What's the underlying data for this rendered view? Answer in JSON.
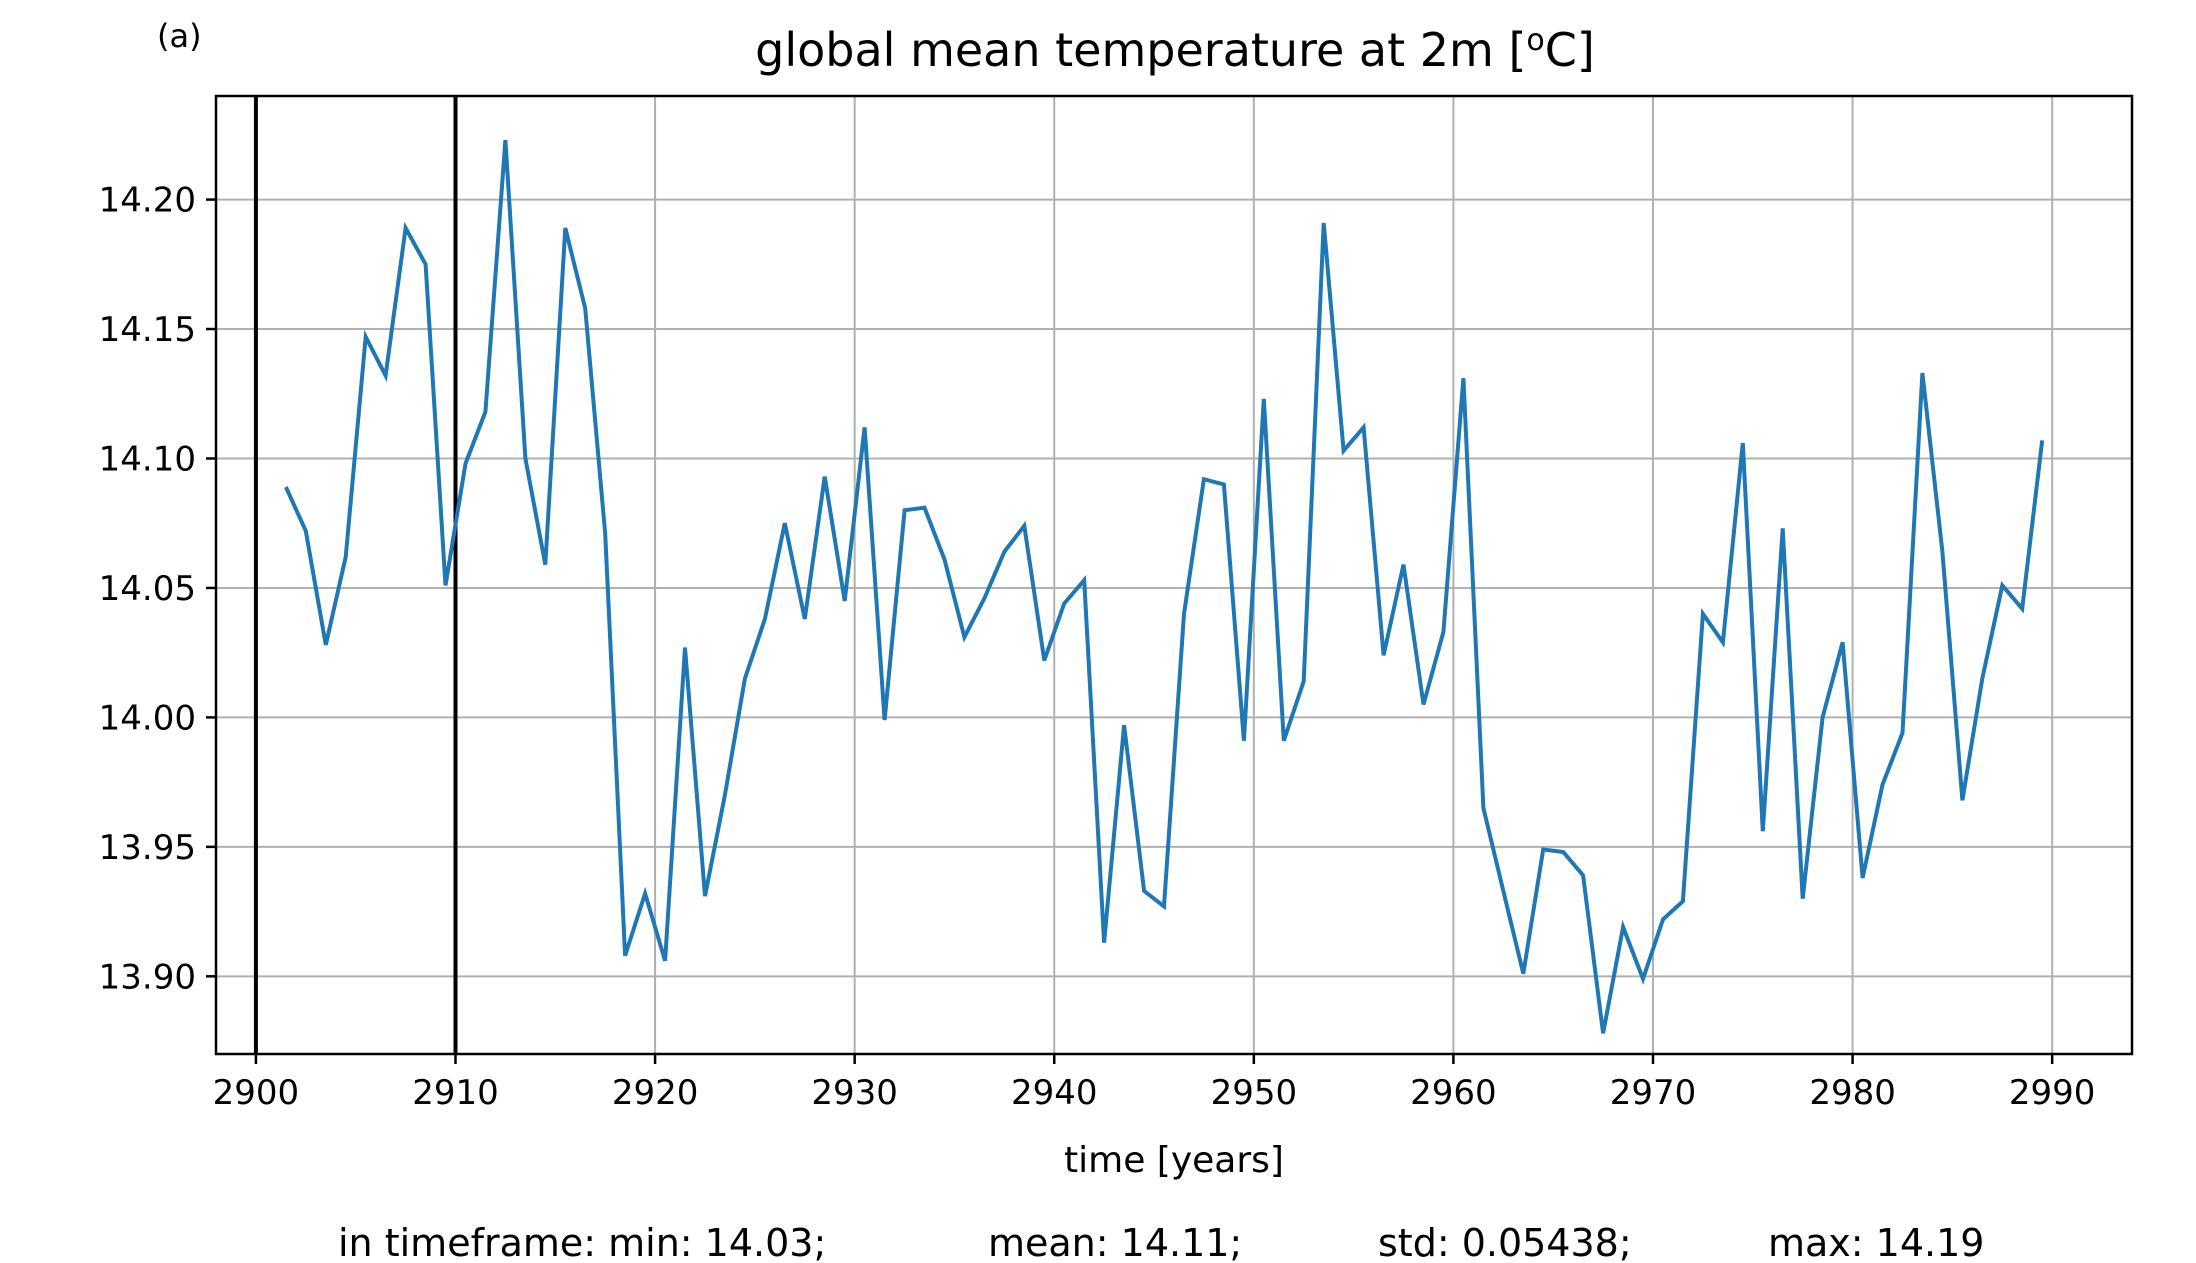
{
  "panel_label": "(a)",
  "stats": [
    {
      "label": "in timeframe: min: 14.03;"
    },
    {
      "label": "mean: 14.11;"
    },
    {
      "label": "std: 0.05438;"
    },
    {
      "label": "max: 14.19"
    }
  ],
  "colors": {
    "series": "#1f77b4",
    "grid": "#b0b0b0",
    "marker_lines": "#000000"
  },
  "chart_data": {
    "type": "line",
    "title_main": "global mean temperature at 2m [",
    "title_sup": "o",
    "title_end": "C]",
    "xlabel": "time [years]",
    "ylabel": "",
    "xlim": [
      2898,
      2994
    ],
    "ylim": [
      13.87,
      14.24
    ],
    "xticks": [
      2900,
      2910,
      2920,
      2930,
      2940,
      2950,
      2960,
      2970,
      2980,
      2990
    ],
    "yticks": [
      13.9,
      13.95,
      14.0,
      14.05,
      14.1,
      14.15,
      14.2
    ],
    "ytick_labels": [
      "13.90",
      "13.95",
      "14.00",
      "14.05",
      "14.10",
      "14.15",
      "14.20"
    ],
    "grid": true,
    "vertical_lines": [
      2900,
      2910
    ],
    "series": [
      {
        "x": [
          2901.5,
          2902.5,
          2903.5,
          2904.5,
          2905.5,
          2906.5,
          2907.5,
          2908.5,
          2909.5,
          2910.5,
          2911.5,
          2912.5,
          2913.5,
          2914.5,
          2915.5,
          2916.5,
          2917.5,
          2918.5,
          2919.5,
          2920.5,
          2921.5,
          2922.5,
          2923.5,
          2924.5,
          2925.5,
          2926.5,
          2927.5,
          2928.5,
          2929.5,
          2930.5,
          2931.5,
          2932.5,
          2933.5,
          2934.5,
          2935.5,
          2936.5,
          2937.5,
          2938.5,
          2939.5,
          2940.5,
          2941.5,
          2942.5,
          2943.5,
          2944.5,
          2945.5,
          2946.5,
          2947.5,
          2948.5,
          2949.5,
          2950.5,
          2951.5,
          2952.5,
          2953.5,
          2954.5,
          2955.5,
          2956.5,
          2957.5,
          2958.5,
          2959.5,
          2960.5,
          2961.5,
          2962.5,
          2963.5,
          2964.5,
          2965.5,
          2966.5,
          2967.5,
          2968.5,
          2969.5,
          2970.5,
          2971.5,
          2972.5,
          2973.5,
          2974.5,
          2975.5,
          2976.5,
          2977.5,
          2978.5,
          2979.5,
          2980.5,
          2981.5,
          2982.5,
          2983.5,
          2984.5,
          2985.5,
          2986.5,
          2987.5,
          2988.5,
          2989.5
        ],
        "values": [
          14.089,
          14.072,
          14.028,
          14.062,
          14.147,
          14.132,
          14.189,
          14.175,
          14.051,
          14.098,
          14.118,
          14.223,
          14.1,
          14.059,
          14.189,
          14.158,
          14.071,
          13.908,
          13.932,
          13.906,
          14.027,
          13.931,
          13.97,
          14.015,
          14.038,
          14.075,
          14.038,
          14.093,
          14.045,
          14.112,
          13.999,
          14.08,
          14.081,
          14.061,
          14.031,
          14.046,
          14.064,
          14.074,
          14.022,
          14.044,
          14.053,
          13.913,
          13.997,
          13.933,
          13.927,
          14.04,
          14.092,
          14.09,
          13.991,
          14.123,
          13.991,
          14.014,
          14.191,
          14.103,
          14.112,
          14.024,
          14.059,
          14.005,
          14.033,
          14.131,
          13.965,
          13.933,
          13.901,
          13.949,
          13.948,
          13.939,
          13.878,
          13.919,
          13.899,
          13.922,
          13.929,
          14.04,
          14.029,
          14.106,
          13.956,
          14.073,
          13.93,
          14.0,
          14.029,
          13.938,
          13.974,
          13.994,
          14.133,
          14.064,
          13.968,
          14.015,
          14.051,
          14.042,
          14.107
        ]
      }
    ]
  }
}
